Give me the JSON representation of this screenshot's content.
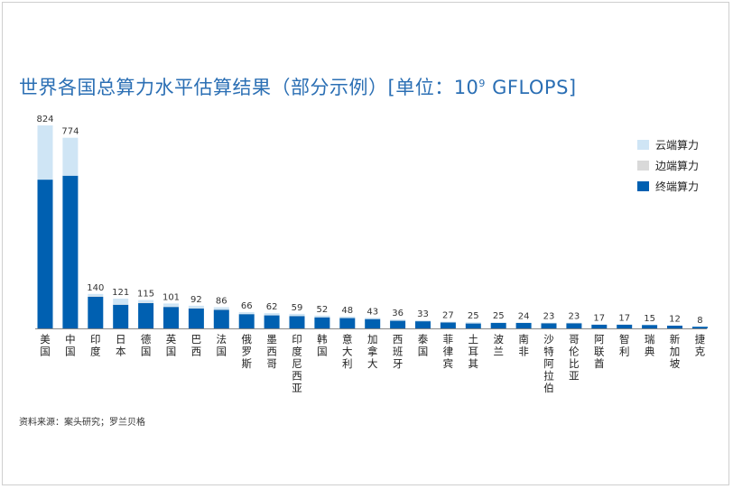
{
  "title_text": "世界各国总算力水平估算结果（部分示例）[单位：10",
  "title_exp": "9",
  "title_unit": " GFLOPS]",
  "source": "资料来源：案头研究；罗兰贝格",
  "colors": {
    "cloud": "#cfe5f5",
    "edge": "#d9d9d9",
    "terminal": "#0060b1",
    "title": "#2b6fb4"
  },
  "chart_data": {
    "type": "bar",
    "stacked": true,
    "categories": [
      "美国",
      "中国",
      "印度",
      "日本",
      "德国",
      "英国",
      "巴西",
      "法国",
      "俄罗斯",
      "墨西哥",
      "印度尼西亚",
      "韩国",
      "意大利",
      "加拿大",
      "西班牙",
      "泰国",
      "菲律宾",
      "土耳其",
      "波兰",
      "南非",
      "沙特阿拉伯",
      "哥伦比亚",
      "阿联酋",
      "智利",
      "瑞典",
      "新加坡",
      "捷克"
    ],
    "totals": [
      824,
      774,
      140,
      121,
      115,
      101,
      92,
      86,
      66,
      62,
      59,
      52,
      48,
      43,
      36,
      33,
      27,
      25,
      25,
      24,
      23,
      23,
      17,
      17,
      15,
      12,
      8
    ],
    "series": [
      {
        "name": "终端算力",
        "color_key": "terminal",
        "values": [
          604,
          620,
          128,
          96,
          103,
          87,
          81,
          75,
          58,
          53,
          50,
          45,
          42,
          38,
          31,
          29,
          24,
          20,
          22,
          22,
          21,
          21,
          15,
          15,
          14,
          11,
          7
        ]
      },
      {
        "name": "边端算力",
        "color_key": "edge",
        "values": [
          0,
          0,
          2,
          2,
          2,
          2,
          2,
          2,
          1,
          1,
          1,
          1,
          1,
          1,
          1,
          1,
          1,
          1,
          1,
          1,
          1,
          1,
          1,
          1,
          0,
          0,
          0
        ]
      },
      {
        "name": "云端算力",
        "color_key": "cloud",
        "values": [
          220,
          154,
          10,
          23,
          10,
          12,
          9,
          9,
          7,
          8,
          8,
          6,
          5,
          4,
          4,
          3,
          2,
          4,
          2,
          1,
          1,
          1,
          1,
          1,
          1,
          1,
          1
        ]
      }
    ],
    "legend_order": [
      "云端算力",
      "边端算力",
      "终端算力"
    ],
    "legend_position": "right",
    "ylim": [
      0,
      824
    ],
    "grid": false
  }
}
